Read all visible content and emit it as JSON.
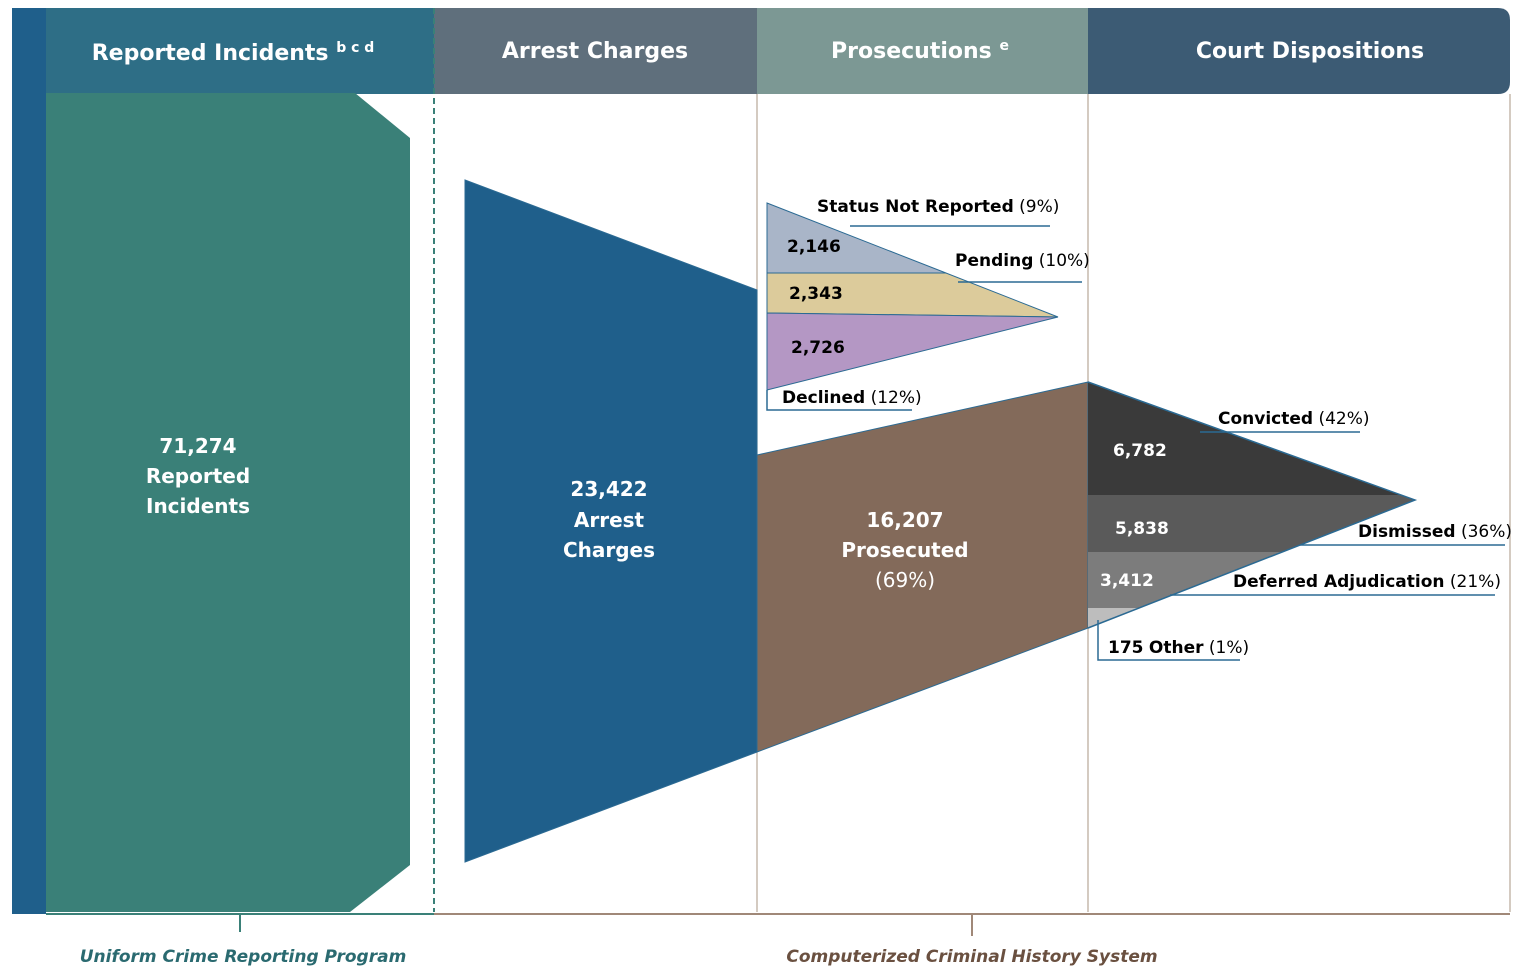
{
  "headers": [
    {
      "title": "Reported Incidents",
      "sup": "b c d"
    },
    {
      "title": "Arrest Charges"
    },
    {
      "title": "Prosecutions",
      "sup": "e"
    },
    {
      "title": "Court Dispositions"
    }
  ],
  "reported": {
    "value": "71,274",
    "lines": [
      "Reported",
      "Incidents"
    ]
  },
  "arrests": {
    "value": "23,422",
    "lines": [
      "Arrest",
      "Charges"
    ]
  },
  "prosecuted": {
    "value": "16,207",
    "label": "Prosecuted",
    "pct": "(69%)"
  },
  "prosecution_outcomes": [
    {
      "name": "Status Not Reported",
      "pct": "(9%)",
      "value": "2,146"
    },
    {
      "name": "Pending",
      "pct": "(10%)",
      "value": "2,343"
    },
    {
      "name": "Declined",
      "pct": "(12%)",
      "value": "2,726"
    }
  ],
  "dispositions": [
    {
      "name": "Convicted",
      "pct": "(42%)",
      "value": "6,782"
    },
    {
      "name": "Dismissed",
      "pct": "(36%)",
      "value": "5,838"
    },
    {
      "name": "Deferred Adjudication",
      "pct": "(21%)",
      "value": "3,412"
    },
    {
      "name": "Other",
      "pct": "(1%)",
      "value": "175"
    }
  ],
  "footers": [
    "Uniform Crime Reporting Program",
    "Computerized Criminal History System"
  ]
}
